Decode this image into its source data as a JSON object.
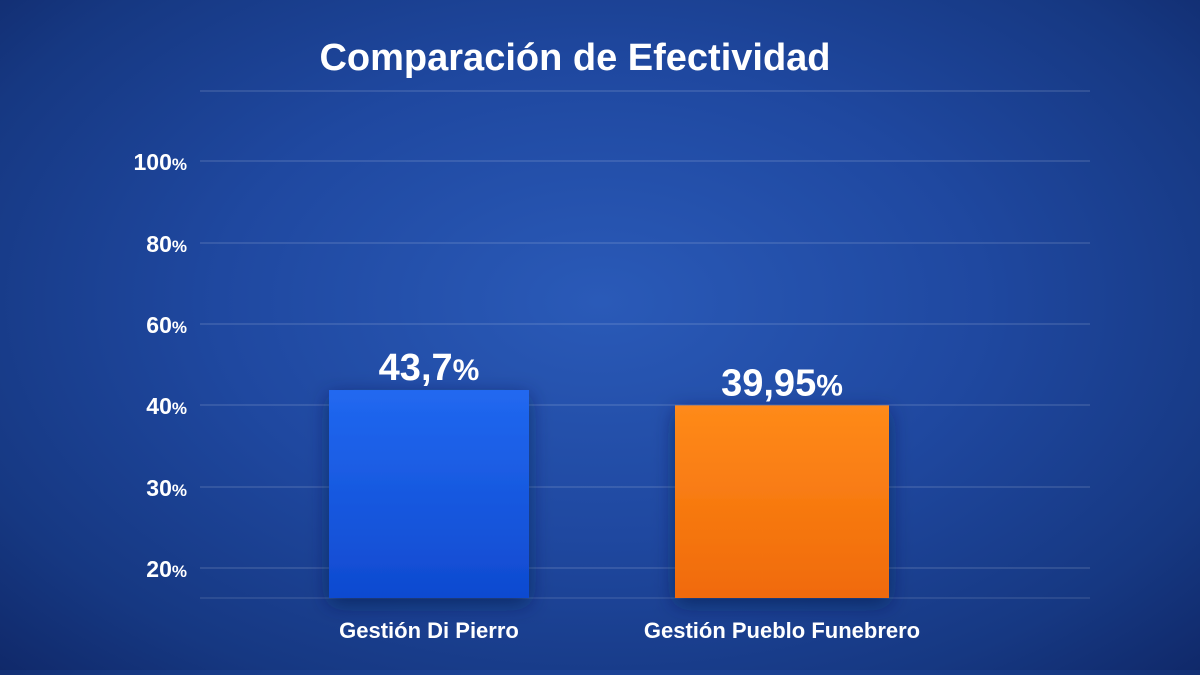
{
  "chart_data": {
    "type": "bar",
    "title": "Comparación de Efectividad",
    "categories": [
      "Gestión Di Pierro",
      "Gestión Pueblo Funebrero"
    ],
    "values": [
      43.7,
      39.95
    ],
    "value_labels": [
      "43,7",
      "39,95"
    ],
    "value_suffix": "%",
    "bar_colors": [
      "#1a5ae0",
      "#f47a10"
    ],
    "y_ticks": [
      {
        "value": 100,
        "label": "100"
      },
      {
        "value": 80,
        "label": "80"
      },
      {
        "value": 60,
        "label": "60"
      },
      {
        "value": 40,
        "label": "40"
      },
      {
        "value": 30,
        "label": "30"
      },
      {
        "value": 20,
        "label": "20"
      }
    ],
    "tick_suffix": "%",
    "grid": true,
    "xlabel": "",
    "ylabel": ""
  }
}
